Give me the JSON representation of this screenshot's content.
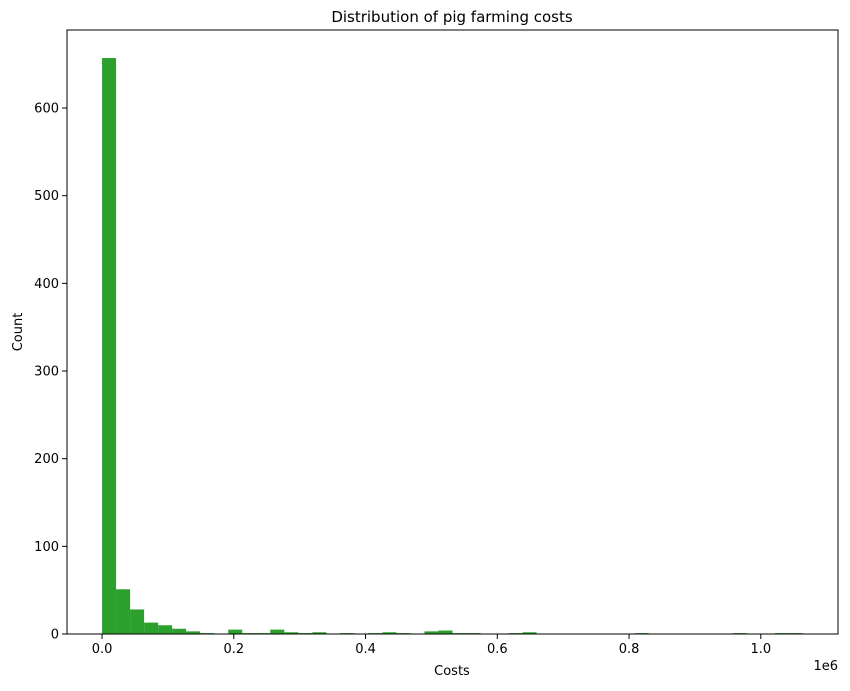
{
  "chart_data": {
    "type": "bar",
    "title": "Distribution of pig farming costs",
    "xlabel": "Costs",
    "ylabel": "Count",
    "x_offset_label": "1e6",
    "xlim": [
      -0.0532,
      1.1172
    ],
    "ylim": [
      0,
      689
    ],
    "bin_width": 0.02128,
    "bin_start": 0.0,
    "counts": [
      657,
      51,
      28,
      13,
      10,
      6,
      3,
      1,
      0,
      5,
      1,
      1,
      5,
      2,
      1,
      2,
      0,
      1,
      0,
      1,
      2,
      1,
      0,
      3,
      4,
      1,
      1,
      0,
      0,
      1,
      2,
      0,
      0,
      0,
      0,
      0,
      0,
      0,
      1,
      0,
      0,
      0,
      0,
      0,
      0,
      1,
      0,
      0,
      1,
      1
    ],
    "xticks": [
      {
        "v": 0.0,
        "label": "0.0"
      },
      {
        "v": 0.2,
        "label": "0.2"
      },
      {
        "v": 0.4,
        "label": "0.4"
      },
      {
        "v": 0.6,
        "label": "0.6"
      },
      {
        "v": 0.8,
        "label": "0.8"
      },
      {
        "v": 1.0,
        "label": "1.0"
      }
    ],
    "yticks": [
      {
        "v": 0,
        "label": "0"
      },
      {
        "v": 100,
        "label": "100"
      },
      {
        "v": 200,
        "label": "200"
      },
      {
        "v": 300,
        "label": "300"
      },
      {
        "v": 400,
        "label": "400"
      },
      {
        "v": 500,
        "label": "500"
      },
      {
        "v": 600,
        "label": "600"
      }
    ],
    "bar_color": "#2ca02c",
    "grid": false
  }
}
